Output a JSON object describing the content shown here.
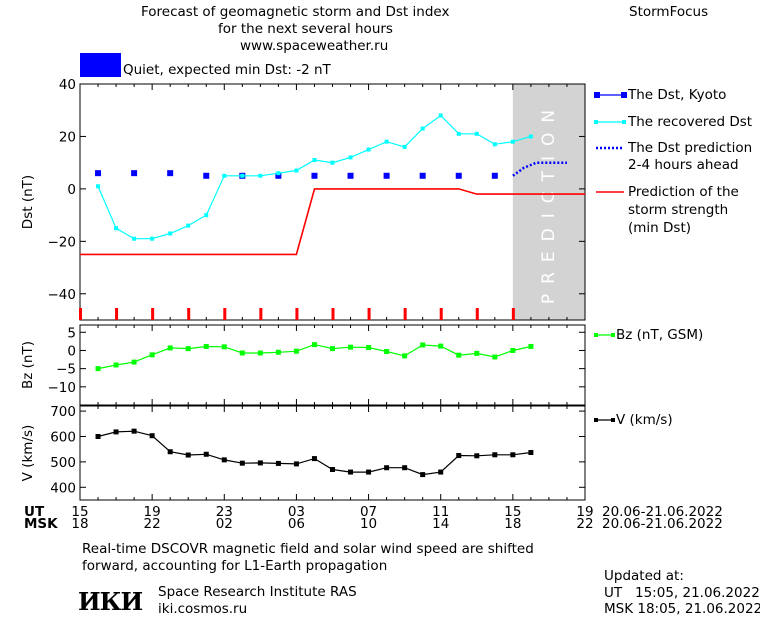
{
  "header": {
    "title_line1": "Forecast of geomagnetic storm and Dst index",
    "title_line2": "for the next several hours",
    "url": "www.spaceweather.ru",
    "brand": "StormFocus"
  },
  "status": {
    "text": "Quiet, expected min Dst: -2 nT",
    "color": "#0000ff"
  },
  "prediction_label": "PREDICTION",
  "legend": {
    "dst_kyoto": "The Dst, Kyoto",
    "recovered_dst": "The recovered Dst",
    "dst_prediction_1": "The Dst prediction",
    "dst_prediction_2": "2-4 hours ahead",
    "storm_strength_1": "Prediction of the",
    "storm_strength_2": "storm strength",
    "storm_strength_3": "(min Dst)",
    "bz": "Bz (nT, GSM)",
    "v": "V (km/s)"
  },
  "time_axis": {
    "ut_label": "UT",
    "msk_label": "MSK",
    "ut_ticks": [
      "15",
      "19",
      "23",
      "03",
      "07",
      "11",
      "15",
      "19"
    ],
    "msk_ticks": [
      "18",
      "22",
      "02",
      "06",
      "10",
      "14",
      "18",
      "22"
    ],
    "ut_range": "20.06-21.06.2022",
    "msk_range": "20.06-21.06.2022"
  },
  "footer": {
    "note_line1": "Real-time DSCOVR magnetic field and solar wind speed are shifted",
    "note_line2": "forward, accounting for L1-Earth propagation",
    "logo_text": "ИКИ",
    "institute": "Space Research Institute RAS",
    "site": "iki.cosmos.ru",
    "updated_label": "Updated at:",
    "updated_ut": "UT   15:05, 21.06.2022",
    "updated_msk": "MSK 18:05, 21.06.2022"
  },
  "colors": {
    "kyoto": "#0000ff",
    "recovered": "#00ffff",
    "prediction": "#0000ff",
    "storm": "#ff0000",
    "bz": "#00ff00",
    "v": "#000000",
    "prediction_zone": "#d3d3d3"
  },
  "chart_data": [
    {
      "type": "line",
      "panel": "dst",
      "ylabel": "Dst (nT)",
      "ylim": [
        -50,
        40
      ],
      "yticks": [
        -40,
        -20,
        0,
        20,
        40
      ],
      "x_unit": "hours since 15 UT 20.06.2022",
      "xlim": [
        0,
        28
      ],
      "prediction_zone": [
        24,
        28
      ],
      "series": [
        {
          "name": "The Dst, Kyoto",
          "style": "squares",
          "x": [
            1,
            3,
            5,
            7,
            9,
            11,
            13,
            15,
            17,
            19,
            21,
            23
          ],
          "values": [
            6,
            6,
            6,
            5,
            5,
            5,
            5,
            5,
            5,
            5,
            5,
            5
          ]
        },
        {
          "name": "The recovered Dst",
          "style": "line-markers",
          "x": [
            1,
            2,
            3,
            4,
            5,
            6,
            7,
            8,
            9,
            10,
            11,
            12,
            13,
            14,
            15,
            16,
            17,
            18,
            19,
            20,
            21,
            22,
            23,
            24,
            25
          ],
          "values": [
            1,
            -15,
            -19,
            -19,
            -17,
            -14,
            -10,
            5,
            5,
            5,
            6,
            7,
            11,
            10,
            12,
            15,
            18,
            16,
            23,
            28,
            21,
            21,
            17,
            18,
            20
          ]
        },
        {
          "name": "The Dst prediction",
          "style": "dotted",
          "x": [
            24,
            24.6,
            25.3,
            27
          ],
          "values": [
            5,
            8,
            10,
            10
          ]
        },
        {
          "name": "Prediction of the storm strength (min Dst)",
          "style": "step",
          "x": [
            0,
            12,
            13,
            21,
            22,
            28
          ],
          "values": [
            -25,
            -25,
            0,
            0,
            -2,
            -2
          ]
        }
      ]
    },
    {
      "type": "line",
      "panel": "bz",
      "ylabel": "Bz (nT)",
      "ylim": [
        -15,
        7
      ],
      "yticks": [
        -10,
        -5,
        0,
        5
      ],
      "xlim": [
        0,
        28
      ],
      "series": [
        {
          "name": "Bz (nT, GSM)",
          "x": [
            1,
            2,
            3,
            4,
            5,
            6,
            7,
            8,
            9,
            10,
            11,
            12,
            13,
            14,
            15,
            16,
            17,
            18,
            19,
            20,
            21,
            22,
            23,
            24,
            25
          ],
          "values": [
            -5,
            -4,
            -3.2,
            -1.2,
            0.7,
            0.5,
            1.1,
            1.0,
            -0.7,
            -0.7,
            -0.5,
            -0.2,
            1.6,
            0.5,
            0.9,
            0.8,
            -0.3,
            -1.5,
            1.5,
            1.2,
            -1.3,
            -0.8,
            -1.8,
            0,
            1.1
          ]
        }
      ]
    },
    {
      "type": "line",
      "panel": "v",
      "ylabel": "V (km/s)",
      "ylim": [
        350,
        720
      ],
      "yticks": [
        400,
        500,
        600,
        700
      ],
      "xlim": [
        0,
        28
      ],
      "series": [
        {
          "name": "V (km/s)",
          "x": [
            1,
            2,
            3,
            4,
            5,
            6,
            7,
            8,
            9,
            10,
            11,
            12,
            13,
            14,
            15,
            16,
            17,
            18,
            19,
            20,
            21,
            22,
            23,
            24,
            25
          ],
          "values": [
            600,
            618,
            621,
            603,
            540,
            527,
            530,
            508,
            495,
            496,
            494,
            492,
            513,
            470,
            460,
            460,
            477,
            477,
            450,
            460,
            525,
            524,
            528,
            528,
            537
          ]
        }
      ]
    }
  ]
}
